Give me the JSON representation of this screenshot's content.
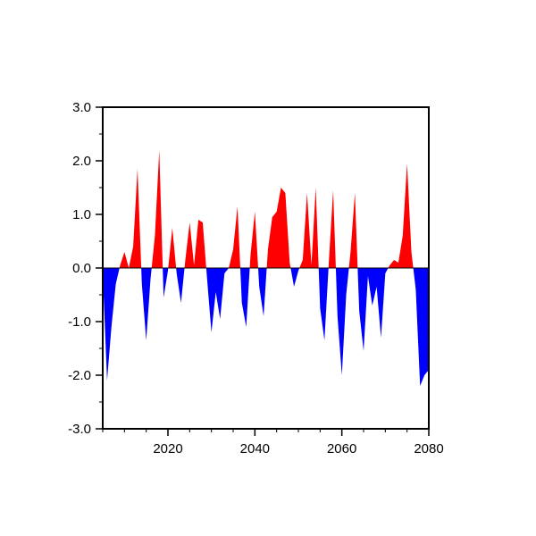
{
  "chart_data": {
    "type": "area",
    "title": "",
    "xlabel": "",
    "ylabel": "",
    "grid": false,
    "legend": "none",
    "description": "Diverging annual anomaly time series; values above zero filled red, below zero filled blue",
    "xlim": [
      2005,
      2080
    ],
    "ylim": [
      -3.0,
      3.0
    ],
    "positive_color": "#ff0000",
    "negative_color": "#0000ff",
    "axis_color": "#000000",
    "background_color": "#ffffff",
    "xticks": {
      "major": [
        2020,
        2040,
        2060,
        2080
      ],
      "labels": [
        "2020",
        "2040",
        "2060",
        "2080"
      ],
      "minor_step": 5
    },
    "yticks": {
      "major": [
        3,
        2,
        1,
        0,
        -1,
        -2,
        -3
      ],
      "labels": [
        "3.0",
        "2.0",
        "1.0",
        "0.0",
        "-1.0",
        "-2.0",
        "-3.0"
      ],
      "minor_step": 0.5
    },
    "x": [
      2005,
      2006,
      2007,
      2008,
      2009,
      2010,
      2011,
      2012,
      2013,
      2014,
      2015,
      2016,
      2017,
      2018,
      2019,
      2020,
      2021,
      2022,
      2023,
      2024,
      2025,
      2026,
      2027,
      2028,
      2029,
      2030,
      2031,
      2032,
      2033,
      2034,
      2035,
      2036,
      2037,
      2038,
      2039,
      2040,
      2041,
      2042,
      2043,
      2044,
      2045,
      2046,
      2047,
      2048,
      2049,
      2050,
      2051,
      2052,
      2053,
      2054,
      2055,
      2056,
      2057,
      2058,
      2059,
      2060,
      2061,
      2062,
      2063,
      2064,
      2065,
      2066,
      2067,
      2068,
      2069,
      2070,
      2071,
      2072,
      2073,
      2074,
      2075,
      2076,
      2077,
      2078,
      2079,
      2080
    ],
    "values": [
      -0.1,
      -2.1,
      -1.1,
      -0.3,
      0.05,
      0.3,
      0.0,
      0.4,
      1.85,
      -0.3,
      -1.35,
      -0.2,
      0.6,
      2.2,
      -0.55,
      -0.05,
      0.75,
      -0.1,
      -0.65,
      0.15,
      0.85,
      0.05,
      0.9,
      0.85,
      -0.2,
      -1.2,
      -0.45,
      -0.95,
      -0.1,
      0.0,
      0.35,
      1.15,
      -0.65,
      -1.1,
      0.25,
      1.05,
      -0.35,
      -0.9,
      0.35,
      0.95,
      1.05,
      1.5,
      1.4,
      0.1,
      -0.35,
      -0.05,
      0.15,
      1.4,
      0.05,
      1.5,
      -0.75,
      -1.35,
      0.1,
      1.45,
      -0.9,
      -2.0,
      -0.5,
      0.3,
      1.4,
      -0.8,
      -1.55,
      -0.15,
      -0.7,
      -0.35,
      -1.3,
      -0.1,
      0.05,
      0.15,
      0.1,
      0.6,
      1.95,
      0.3,
      -0.4,
      -2.2,
      -2.0,
      -1.9
    ]
  }
}
